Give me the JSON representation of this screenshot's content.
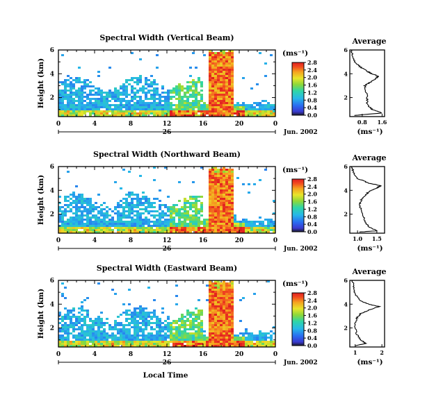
{
  "chart_data": [
    {
      "type": "heatmap",
      "title": "Spectral Width (Vertical Beam)",
      "ylabel": "Height (km)",
      "xlim": [
        0,
        24
      ],
      "ylim": [
        0.4,
        6
      ],
      "x_ticks": [
        "0",
        "4",
        "8",
        "12",
        "16",
        "20",
        "0"
      ],
      "y_ticks": [
        "2",
        "4",
        "6"
      ],
      "date_label": "26",
      "month_label": "Jun. 2002",
      "colorbar": {
        "label": "(ms⁻¹)",
        "ticks": [
          "0.0",
          "0.4",
          "0.8",
          "1.2",
          "1.6",
          "2.0",
          "2.4",
          "2.8"
        ],
        "range": [
          0,
          2.8
        ]
      },
      "average": {
        "title": "Average",
        "xlabel": "(ms⁻¹)",
        "xlim": [
          0.3,
          1.7
        ],
        "x_ticks": [
          "0.8",
          "1.6"
        ],
        "y_ticks": [
          "2",
          "4",
          "6"
        ],
        "profile": [
          [
            0.5,
            0.5
          ],
          [
            1.6,
            0.7
          ],
          [
            1.2,
            1.0
          ],
          [
            1.0,
            1.4
          ],
          [
            1.0,
            2.0
          ],
          [
            0.95,
            2.6
          ],
          [
            0.9,
            3.0
          ],
          [
            1.05,
            3.2
          ],
          [
            1.3,
            3.5
          ],
          [
            1.45,
            3.8
          ],
          [
            1.2,
            4.0
          ],
          [
            1.0,
            4.2
          ],
          [
            0.7,
            4.6
          ],
          [
            0.5,
            5.0
          ],
          [
            0.4,
            5.6
          ],
          [
            0.35,
            6.0
          ]
        ]
      }
    },
    {
      "type": "heatmap",
      "title": "Spectral Width (Northward Beam)",
      "ylabel": "Height (km)",
      "xlim": [
        0,
        24
      ],
      "ylim": [
        0.4,
        6
      ],
      "x_ticks": [
        "0",
        "4",
        "8",
        "12",
        "16",
        "20",
        "0"
      ],
      "y_ticks": [
        "2",
        "4",
        "6"
      ],
      "date_label": "26",
      "month_label": "Jun. 2002",
      "colorbar": {
        "label": "(ms⁻¹)",
        "ticks": [
          "0.0",
          "0.4",
          "0.8",
          "1.2",
          "1.6",
          "2.0",
          "2.4",
          "2.8"
        ],
        "range": [
          0,
          2.8
        ]
      },
      "average": {
        "title": "Average",
        "xlabel": "(ms⁻¹)",
        "xlim": [
          0.8,
          1.7
        ],
        "x_ticks": [
          "1.0",
          "1.5"
        ],
        "y_ticks": [
          "2",
          "4",
          "6"
        ],
        "profile": [
          [
            1.05,
            0.5
          ],
          [
            1.5,
            0.6
          ],
          [
            1.3,
            0.9
          ],
          [
            1.2,
            1.3
          ],
          [
            1.15,
            1.8
          ],
          [
            1.1,
            2.3
          ],
          [
            1.05,
            2.8
          ],
          [
            1.1,
            3.2
          ],
          [
            1.2,
            3.6
          ],
          [
            1.3,
            3.9
          ],
          [
            1.5,
            4.2
          ],
          [
            1.6,
            4.4
          ],
          [
            1.3,
            4.6
          ],
          [
            1.0,
            5.0
          ],
          [
            0.9,
            5.5
          ],
          [
            0.85,
            6.0
          ]
        ]
      }
    },
    {
      "type": "heatmap",
      "title": "Spectral Width (Eastward Beam)",
      "ylabel": "Height (km)",
      "xlim": [
        0,
        24
      ],
      "ylim": [
        0.4,
        6
      ],
      "x_ticks": [
        "0",
        "4",
        "8",
        "12",
        "16",
        "20",
        "0"
      ],
      "y_ticks": [
        "2",
        "4",
        "6"
      ],
      "date_label": "26",
      "month_label": "Jun. 2002",
      "xlabel": "Local Time",
      "colorbar": {
        "label": "(ms⁻¹)",
        "ticks": [
          "0.0",
          "0.4",
          "0.8",
          "1.2",
          "1.6",
          "2.0",
          "2.4",
          "2.8"
        ],
        "range": [
          0,
          2.8
        ]
      },
      "average": {
        "title": "Average",
        "xlabel": "(ms⁻¹)",
        "xlim": [
          0.8,
          2.1
        ],
        "x_ticks": [
          "1",
          "2"
        ],
        "y_ticks": [
          "2",
          "4",
          "6"
        ],
        "profile": [
          [
            1.0,
            0.5
          ],
          [
            1.4,
            0.7
          ],
          [
            1.2,
            1.0
          ],
          [
            1.05,
            1.5
          ],
          [
            1.0,
            2.2
          ],
          [
            1.05,
            2.8
          ],
          [
            1.2,
            3.2
          ],
          [
            1.5,
            3.5
          ],
          [
            1.9,
            3.8
          ],
          [
            1.5,
            4.0
          ],
          [
            1.2,
            4.3
          ],
          [
            1.0,
            4.8
          ],
          [
            0.95,
            5.4
          ],
          [
            0.9,
            6.0
          ]
        ]
      }
    }
  ]
}
